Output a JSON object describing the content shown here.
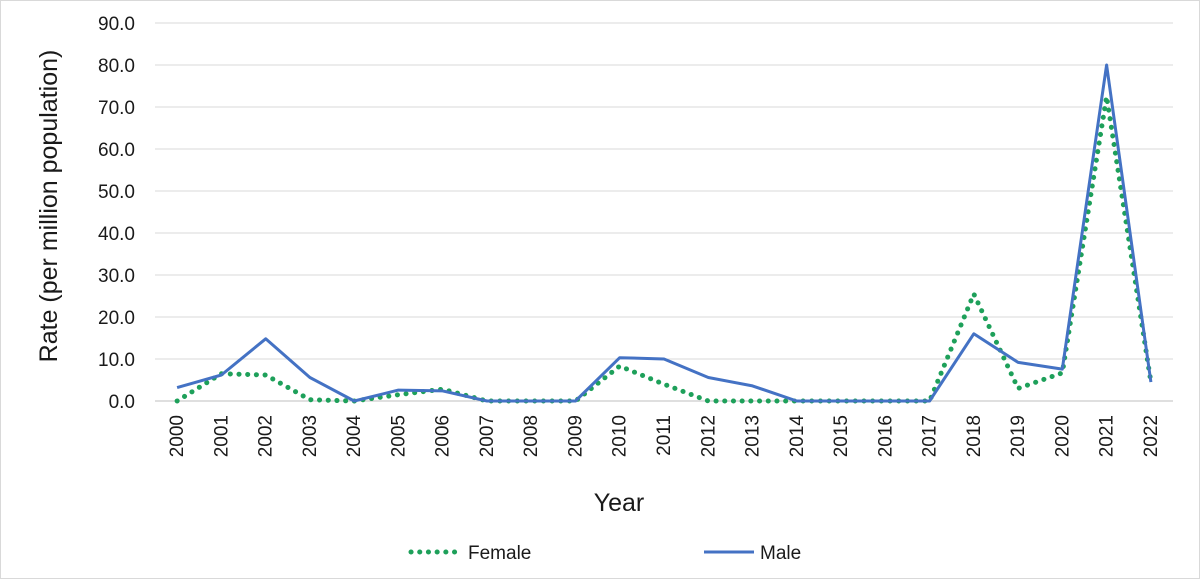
{
  "chart_data": {
    "type": "line",
    "title": "",
    "xlabel": "Year",
    "ylabel": "Rate (per million population)",
    "ylim": [
      0,
      90
    ],
    "yticks": [
      "0.0",
      "10.0",
      "20.0",
      "30.0",
      "40.0",
      "50.0",
      "60.0",
      "70.0",
      "80.0",
      "90.0"
    ],
    "categories": [
      "2000",
      "2001",
      "2002",
      "2003",
      "2004",
      "2005",
      "2006",
      "2007",
      "2008",
      "2009",
      "2010",
      "2011",
      "2012",
      "2013",
      "2014",
      "2015",
      "2016",
      "2017",
      "2018",
      "2019",
      "2020",
      "2021",
      "2022"
    ],
    "grid": "horizontal",
    "legend_position": "bottom",
    "series": [
      {
        "name": "Female",
        "style": "dotted",
        "color": "#1ea05a",
        "values": [
          0.0,
          6.5,
          6.2,
          0.3,
          0.0,
          1.5,
          2.8,
          0.0,
          0.0,
          0.0,
          8.3,
          4.0,
          0.0,
          0.0,
          0.0,
          0.0,
          0.0,
          0.0,
          25.5,
          3.0,
          6.7,
          72.5,
          4.5
        ]
      },
      {
        "name": "Male",
        "style": "solid",
        "color": "#4472c4",
        "values": [
          3.2,
          6.2,
          14.8,
          5.6,
          0.0,
          2.6,
          2.4,
          0.0,
          0.0,
          0.0,
          10.3,
          10.0,
          5.6,
          3.6,
          0.0,
          0.0,
          0.0,
          0.0,
          16.0,
          9.2,
          7.6,
          80.0,
          4.5
        ]
      }
    ]
  }
}
